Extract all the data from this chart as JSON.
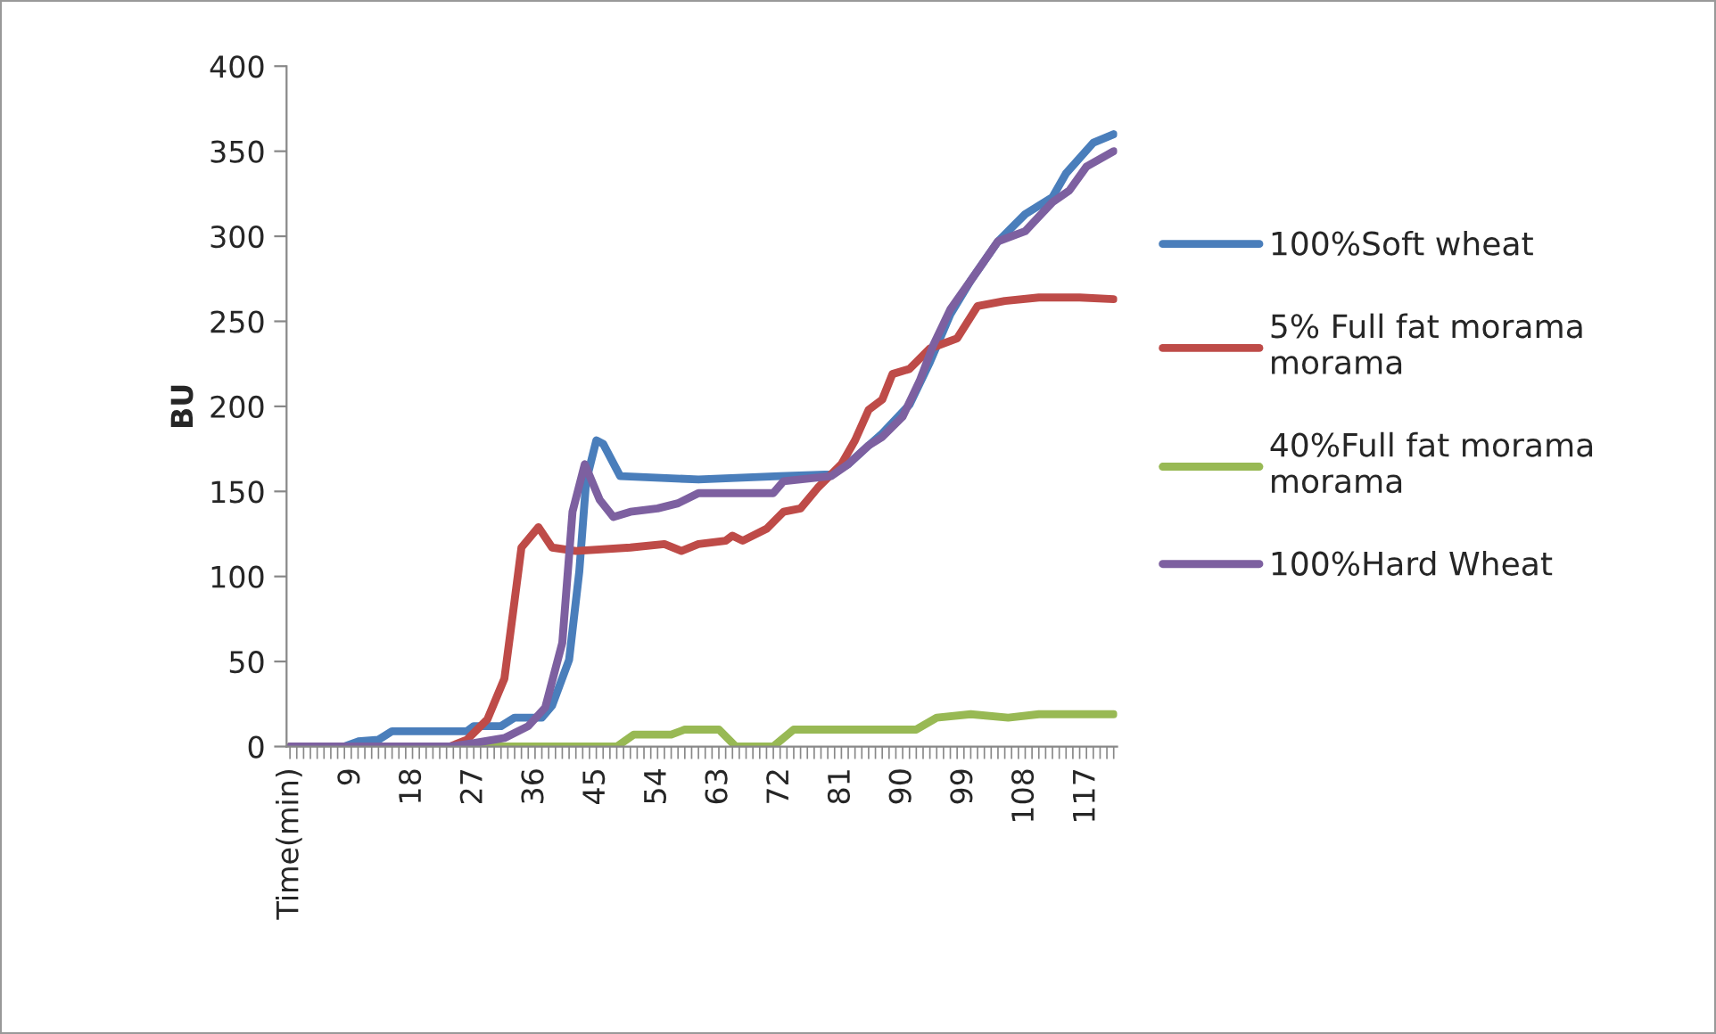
{
  "chart_data": {
    "type": "line",
    "ylabel": "BU",
    "xlim": [
      -0.5,
      121.5
    ],
    "ylim": [
      0,
      400
    ],
    "yticks": [
      0,
      50,
      100,
      150,
      200,
      250,
      300,
      350,
      400
    ],
    "xticks": [
      {
        "value": 0,
        "label": "Time(min)"
      },
      {
        "value": 1,
        "label": null
      },
      {
        "value": 2,
        "label": null
      },
      {
        "value": 3,
        "label": null
      },
      {
        "value": 4,
        "label": null
      },
      {
        "value": 5,
        "label": null
      },
      {
        "value": 6,
        "label": null
      },
      {
        "value": 7,
        "label": null
      },
      {
        "value": 8,
        "label": null
      },
      9,
      {
        "value": 10,
        "label": null
      },
      {
        "value": 11,
        "label": null
      },
      {
        "value": 12,
        "label": null
      },
      {
        "value": 13,
        "label": null
      },
      {
        "value": 14,
        "label": null
      },
      {
        "value": 15,
        "label": null
      },
      {
        "value": 16,
        "label": null
      },
      {
        "value": 17,
        "label": null
      },
      18,
      {
        "value": 19,
        "label": null
      },
      {
        "value": 20,
        "label": null
      },
      {
        "value": 21,
        "label": null
      },
      {
        "value": 22,
        "label": null
      },
      {
        "value": 23,
        "label": null
      },
      {
        "value": 24,
        "label": null
      },
      {
        "value": 25,
        "label": null
      },
      {
        "value": 26,
        "label": null
      },
      27,
      {
        "value": 28,
        "label": null
      },
      {
        "value": 29,
        "label": null
      },
      {
        "value": 30,
        "label": null
      },
      {
        "value": 31,
        "label": null
      },
      {
        "value": 32,
        "label": null
      },
      {
        "value": 33,
        "label": null
      },
      {
        "value": 34,
        "label": null
      },
      {
        "value": 35,
        "label": null
      },
      36,
      {
        "value": 37,
        "label": null
      },
      {
        "value": 38,
        "label": null
      },
      {
        "value": 39,
        "label": null
      },
      {
        "value": 40,
        "label": null
      },
      {
        "value": 41,
        "label": null
      },
      {
        "value": 42,
        "label": null
      },
      {
        "value": 43,
        "label": null
      },
      {
        "value": 44,
        "label": null
      },
      45,
      {
        "value": 46,
        "label": null
      },
      {
        "value": 47,
        "label": null
      },
      {
        "value": 48,
        "label": null
      },
      {
        "value": 49,
        "label": null
      },
      {
        "value": 50,
        "label": null
      },
      {
        "value": 51,
        "label": null
      },
      {
        "value": 52,
        "label": null
      },
      {
        "value": 53,
        "label": null
      },
      54,
      {
        "value": 55,
        "label": null
      },
      {
        "value": 56,
        "label": null
      },
      {
        "value": 57,
        "label": null
      },
      {
        "value": 58,
        "label": null
      },
      {
        "value": 59,
        "label": null
      },
      {
        "value": 60,
        "label": null
      },
      {
        "value": 61,
        "label": null
      },
      {
        "value": 62,
        "label": null
      },
      63,
      {
        "value": 64,
        "label": null
      },
      {
        "value": 65,
        "label": null
      },
      {
        "value": 66,
        "label": null
      },
      {
        "value": 67,
        "label": null
      },
      {
        "value": 68,
        "label": null
      },
      {
        "value": 69,
        "label": null
      },
      {
        "value": 70,
        "label": null
      },
      {
        "value": 71,
        "label": null
      },
      72,
      {
        "value": 73,
        "label": null
      },
      {
        "value": 74,
        "label": null
      },
      {
        "value": 75,
        "label": null
      },
      {
        "value": 76,
        "label": null
      },
      {
        "value": 77,
        "label": null
      },
      {
        "value": 78,
        "label": null
      },
      {
        "value": 79,
        "label": null
      },
      {
        "value": 80,
        "label": null
      },
      81,
      {
        "value": 82,
        "label": null
      },
      {
        "value": 83,
        "label": null
      },
      {
        "value": 84,
        "label": null
      },
      {
        "value": 85,
        "label": null
      },
      {
        "value": 86,
        "label": null
      },
      {
        "value": 87,
        "label": null
      },
      {
        "value": 88,
        "label": null
      },
      {
        "value": 89,
        "label": null
      },
      90,
      {
        "value": 91,
        "label": null
      },
      {
        "value": 92,
        "label": null
      },
      {
        "value": 93,
        "label": null
      },
      {
        "value": 94,
        "label": null
      },
      {
        "value": 95,
        "label": null
      },
      {
        "value": 96,
        "label": null
      },
      {
        "value": 97,
        "label": null
      },
      {
        "value": 98,
        "label": null
      },
      99,
      {
        "value": 100,
        "label": null
      },
      {
        "value": 101,
        "label": null
      },
      {
        "value": 102,
        "label": null
      },
      {
        "value": 103,
        "label": null
      },
      {
        "value": 104,
        "label": null
      },
      {
        "value": 105,
        "label": null
      },
      {
        "value": 106,
        "label": null
      },
      {
        "value": 107,
        "label": null
      },
      108,
      {
        "value": 109,
        "label": null
      },
      {
        "value": 110,
        "label": null
      },
      {
        "value": 111,
        "label": null
      },
      {
        "value": 112,
        "label": null
      },
      {
        "value": 113,
        "label": null
      },
      {
        "value": 114,
        "label": null
      },
      {
        "value": 115,
        "label": null
      },
      {
        "value": 116,
        "label": null
      },
      117,
      {
        "value": 118,
        "label": null
      },
      {
        "value": 119,
        "label": null
      },
      {
        "value": 120,
        "label": null
      },
      {
        "value": 121,
        "label": null
      }
    ],
    "legend": "right",
    "grid": false,
    "marker": "none",
    "line_style": "solid",
    "series": [
      {
        "name": "100%Soft wheat",
        "color": "#4a7ebb",
        "x": [
          0,
          8,
          10,
          13,
          15,
          26,
          27,
          31,
          33,
          37,
          38.5,
          41,
          42.5,
          43.5,
          45,
          46,
          48.5,
          60,
          72,
          79.5,
          82,
          85,
          87,
          91,
          94,
          97,
          100,
          104,
          108,
          112,
          114,
          118,
          121
        ],
        "values": [
          0,
          0,
          3,
          4,
          9,
          9,
          12,
          12,
          17,
          17,
          24,
          51,
          103,
          156,
          180,
          178,
          159,
          157,
          159,
          160,
          166,
          177,
          184,
          201,
          226,
          254,
          274,
          297,
          313,
          323,
          337,
          355,
          360
        ]
      },
      {
        "name": "5% Full fat morama\nmorama",
        "color": "#be4b48",
        "x": [
          0,
          23.5,
          26,
          29,
          31.5,
          33,
          34,
          36.5,
          38.5,
          42,
          50,
          55,
          57.5,
          60,
          64,
          65,
          66.5,
          70,
          72.5,
          75,
          77.5,
          81,
          83,
          85,
          87,
          88.5,
          91,
          94,
          98,
          101,
          105,
          110,
          116,
          121
        ],
        "values": [
          0,
          0,
          4,
          16,
          40,
          86,
          117,
          129,
          117,
          115,
          117,
          119,
          115,
          119,
          121,
          124,
          121,
          128,
          138,
          140,
          152,
          166,
          180,
          198,
          204,
          219,
          222,
          234,
          240,
          259,
          262,
          264,
          264,
          263
        ]
      },
      {
        "name": "40%Full fat morama\nmorama",
        "color": "#98b954",
        "x": [
          0,
          48,
          50.5,
          56,
          58,
          63,
          65.5,
          71,
          74,
          92,
          95,
          100,
          105.5,
          110,
          121
        ],
        "values": [
          0,
          0,
          7,
          7,
          10,
          10,
          0,
          0,
          10,
          10,
          17,
          19,
          17,
          19,
          19
        ]
      },
      {
        "name": "100%Hard Wheat",
        "color": "#7d60a0",
        "x": [
          0,
          23.5,
          27,
          31.5,
          35,
          37.5,
          40,
          41.5,
          43.3,
          45.5,
          47.5,
          50,
          54,
          57,
          60,
          71,
          72.5,
          79.5,
          82,
          85,
          87,
          90,
          92.5,
          94.5,
          97,
          100,
          104,
          108,
          112,
          114.5,
          117,
          121
        ],
        "values": [
          0,
          0,
          2,
          5,
          12,
          23,
          61,
          138,
          166,
          145,
          135,
          138,
          140,
          143,
          149,
          149,
          156,
          159,
          166,
          177,
          182,
          194,
          215,
          236,
          257,
          274,
          297,
          303,
          320,
          327,
          341,
          350
        ]
      }
    ]
  }
}
